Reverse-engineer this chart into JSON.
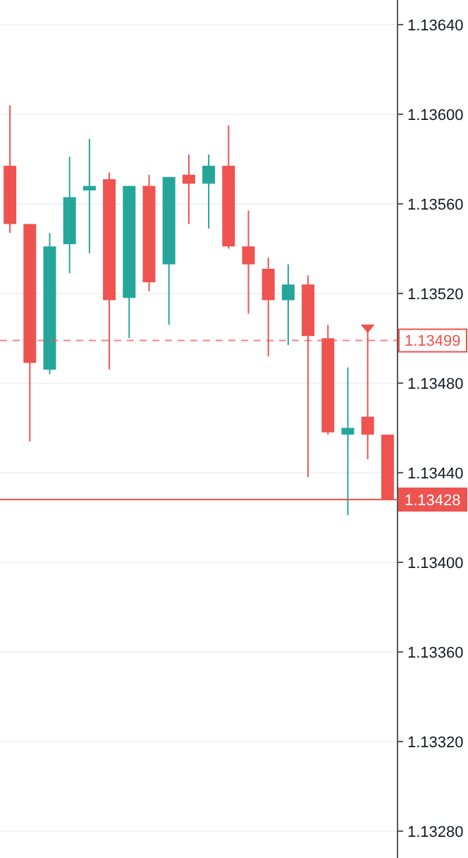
{
  "chart_data": {
    "type": "candlestick",
    "categories": [
      null,
      null,
      null,
      null,
      null,
      null,
      null,
      null,
      null,
      null,
      null,
      null,
      null,
      null,
      null,
      null,
      null,
      null,
      null,
      null
    ],
    "ohlc": [
      [
        1.13577,
        1.13604,
        1.13547,
        1.13551
      ],
      [
        1.13551,
        1.13551,
        1.13454,
        1.13489
      ],
      [
        1.13486,
        1.13547,
        1.13484,
        1.13541
      ],
      [
        1.13542,
        1.13581,
        1.13529,
        1.13563
      ],
      [
        1.13566,
        1.13589,
        1.13538,
        1.13568
      ],
      [
        1.13571,
        1.13574,
        1.13486,
        1.13517
      ],
      [
        1.13518,
        1.13568,
        1.135,
        1.13568
      ],
      [
        1.13568,
        1.13573,
        1.13521,
        1.13525
      ],
      [
        1.13533,
        1.13572,
        1.13506,
        1.13572
      ],
      [
        1.13573,
        1.13582,
        1.13551,
        1.13569
      ],
      [
        1.13569,
        1.13582,
        1.13549,
        1.13577
      ],
      [
        1.13577,
        1.13595,
        1.1354,
        1.13541
      ],
      [
        1.13541,
        1.13557,
        1.13511,
        1.13533
      ],
      [
        1.13531,
        1.13536,
        1.13492,
        1.13517
      ],
      [
        1.13517,
        1.13533,
        1.13497,
        1.13524
      ],
      [
        1.13524,
        1.13528,
        1.13438,
        1.13501
      ],
      [
        1.135,
        1.13506,
        1.13457,
        1.13458
      ],
      [
        1.13457,
        1.13487,
        1.13421,
        1.1346
      ],
      [
        1.13465,
        1.13503,
        1.13446,
        1.13457
      ],
      [
        1.13457,
        1.13457,
        1.13428,
        1.13428
      ]
    ],
    "colors": [
      "#ef5350",
      "#ef5350",
      "#26a69a",
      "#26a69a",
      "#26a69a",
      "#ef5350",
      "#26a69a",
      "#ef5350",
      "#26a69a",
      "#ef5350",
      "#26a69a",
      "#ef5350",
      "#ef5350",
      "#ef5350",
      "#26a69a",
      "#ef5350",
      "#ef5350",
      "#26a69a",
      "#ef5350",
      "#ef5350"
    ],
    "ylim": [
      1.13268,
      1.13651
    ],
    "yticks": [
      {
        "value": 1.1328,
        "label": "1.13280"
      },
      {
        "value": 1.1332,
        "label": "1.13320"
      },
      {
        "value": 1.1336,
        "label": "1.13360"
      },
      {
        "value": 1.134,
        "label": "1.13400"
      },
      {
        "value": 1.1344,
        "label": "1.13440"
      },
      {
        "value": 1.1348,
        "label": "1.13480"
      },
      {
        "value": 1.1352,
        "label": "1.13520"
      },
      {
        "value": 1.1356,
        "label": "1.13560"
      },
      {
        "value": 1.136,
        "label": "1.13600"
      },
      {
        "value": 1.1364,
        "label": "1.13640"
      }
    ],
    "ref_lines": [
      {
        "axis": "y",
        "value": 1.13499,
        "label": "1.13499",
        "color": "#ef5350",
        "line_style": "dashed"
      },
      {
        "axis": "y",
        "value": 1.13428,
        "label": "1.13428",
        "color": "#ef5350",
        "line_style": "solid"
      }
    ],
    "grid": "y"
  }
}
